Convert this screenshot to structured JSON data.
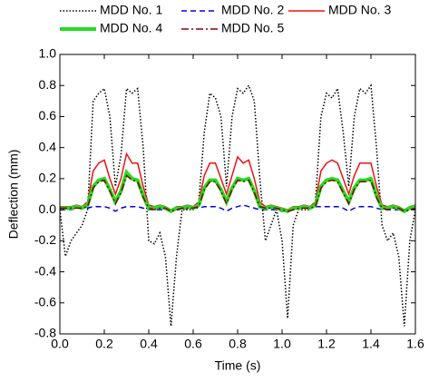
{
  "chart_data": {
    "type": "line",
    "xlabel": "Time (s)",
    "ylabel": "Deflection (mm)",
    "xlim": [
      0,
      1.6
    ],
    "ylim": [
      -0.8,
      1.0
    ],
    "xticks": [
      {
        "value": 0,
        "label": "0.0"
      },
      {
        "value": 0.2,
        "label": "0.2"
      },
      {
        "value": 0.4,
        "label": "0.4"
      },
      {
        "value": 0.6,
        "label": "0.6"
      },
      {
        "value": 0.8,
        "label": "0.8"
      },
      {
        "value": 1.0,
        "label": "1.0"
      },
      {
        "value": 1.2,
        "label": "1.2"
      },
      {
        "value": 1.4,
        "label": "1.4"
      },
      {
        "value": 1.6,
        "label": "1.6"
      }
    ],
    "yticks": [
      {
        "value": -0.8,
        "label": "-0.8"
      },
      {
        "value": -0.6,
        "label": "-0.6"
      },
      {
        "value": -0.4,
        "label": "-0.4"
      },
      {
        "value": -0.2,
        "label": "-0.2"
      },
      {
        "value": 0,
        "label": "0.0"
      },
      {
        "value": 0.2,
        "label": "0.2"
      },
      {
        "value": 0.4,
        "label": "0.4"
      },
      {
        "value": 0.6,
        "label": "0.6"
      },
      {
        "value": 0.8,
        "label": "0.8"
      },
      {
        "value": 1.0,
        "label": "1.0"
      }
    ],
    "x": [
      0,
      0.025,
      0.05,
      0.075,
      0.1,
      0.125,
      0.15,
      0.175,
      0.2,
      0.225,
      0.25,
      0.275,
      0.3,
      0.325,
      0.35,
      0.375,
      0.4,
      0.425,
      0.45,
      0.475,
      0.5,
      0.525,
      0.55,
      0.575,
      0.6,
      0.625,
      0.65,
      0.675,
      0.7,
      0.725,
      0.75,
      0.775,
      0.8,
      0.825,
      0.85,
      0.875,
      0.9,
      0.925,
      0.95,
      0.975,
      1.0,
      1.025,
      1.05,
      1.075,
      1.1,
      1.125,
      1.15,
      1.175,
      1.2,
      1.225,
      1.25,
      1.275,
      1.3,
      1.325,
      1.35,
      1.375,
      1.4,
      1.425,
      1.45,
      1.475,
      1.5,
      1.525,
      1.55,
      1.575,
      1.6
    ],
    "series": [
      {
        "name": "MDD No. 1",
        "color": "#000000",
        "dash": "dotted",
        "width": 1.5,
        "values": [
          0,
          -0.3,
          -0.2,
          -0.15,
          -0.1,
          0,
          0.7,
          0.75,
          0.78,
          0.6,
          0.15,
          0.35,
          0.78,
          0.75,
          0.78,
          0.4,
          -0.2,
          -0.22,
          -0.15,
          -0.3,
          -0.75,
          -0.3,
          0,
          0,
          0,
          0.05,
          0.5,
          0.75,
          0.72,
          0.6,
          0.15,
          0.6,
          0.78,
          0.75,
          0.8,
          0.7,
          0.2,
          -0.2,
          -0.1,
          0,
          -0.2,
          -0.7,
          -0.1,
          0,
          0,
          0,
          0.05,
          0.6,
          0.75,
          0.72,
          0.78,
          0.5,
          0.15,
          0.6,
          0.78,
          0.75,
          0.8,
          0.4,
          -0.1,
          -0.2,
          -0.15,
          -0.3,
          -0.75,
          -0.2,
          0
        ]
      },
      {
        "name": "MDD No. 2",
        "color": "#0000ee",
        "dash": "dashed",
        "width": 1.5,
        "values": [
          0,
          0,
          0,
          0.01,
          0.01,
          0.01,
          0.02,
          0.02,
          0.02,
          0.01,
          -0.01,
          0.01,
          0.02,
          0.02,
          0.02,
          0.01,
          0,
          0,
          0,
          0,
          -0.01,
          0,
          0,
          0.01,
          0.01,
          0.01,
          0.02,
          0.02,
          0.02,
          0.01,
          -0.01,
          0.01,
          0.02,
          0.03,
          0.02,
          0.01,
          0,
          0,
          0,
          0,
          -0.01,
          -0.01,
          0,
          0.01,
          0.01,
          0.01,
          0.02,
          0.02,
          0.02,
          0.02,
          0.02,
          0.01,
          -0.01,
          0.01,
          0.02,
          0.02,
          0.02,
          0.01,
          0,
          0,
          0,
          0,
          -0.01,
          0,
          0
        ]
      },
      {
        "name": "MDD No. 3",
        "color": "#ee1111",
        "dash": "solid",
        "width": 1.5,
        "values": [
          0.02,
          0.02,
          0.02,
          0.03,
          0.02,
          0.05,
          0.25,
          0.3,
          0.32,
          0.2,
          0.1,
          0.2,
          0.36,
          0.3,
          0.3,
          0.15,
          0.03,
          0.02,
          0.03,
          0.02,
          0,
          0.02,
          0.02,
          0.03,
          0.02,
          0.05,
          0.22,
          0.3,
          0.3,
          0.2,
          0.1,
          0.22,
          0.34,
          0.3,
          0.32,
          0.2,
          0.05,
          0.02,
          0.03,
          0.02,
          0.01,
          0,
          0.02,
          0.02,
          0.03,
          0.02,
          0.05,
          0.25,
          0.3,
          0.32,
          0.3,
          0.2,
          0.1,
          0.22,
          0.3,
          0.3,
          0.3,
          0.15,
          0.03,
          0.02,
          0.03,
          0.02,
          0,
          0.02,
          0.03
        ]
      },
      {
        "name": "MDD No. 4",
        "color": "#22dd22",
        "dash": "solid",
        "width": 4,
        "values": [
          0.01,
          0.01,
          0.01,
          0.02,
          0.01,
          0.03,
          0.15,
          0.19,
          0.2,
          0.13,
          0.05,
          0.12,
          0.24,
          0.2,
          0.19,
          0.09,
          0.01,
          0.01,
          0.02,
          0.01,
          -0.01,
          0.01,
          0.01,
          0.02,
          0.01,
          0.03,
          0.14,
          0.19,
          0.19,
          0.13,
          0.05,
          0.14,
          0.2,
          0.19,
          0.2,
          0.12,
          0.02,
          0.01,
          0.02,
          0.01,
          0,
          -0.01,
          0.01,
          0.01,
          0.02,
          0.01,
          0.03,
          0.15,
          0.19,
          0.2,
          0.19,
          0.12,
          0.05,
          0.14,
          0.19,
          0.19,
          0.2,
          0.09,
          0.01,
          0.01,
          0.02,
          0.01,
          -0.01,
          0.01,
          0.02
        ]
      },
      {
        "name": "MDD No. 5",
        "color": "#8b0000",
        "dash": "dashdot",
        "width": 1.5,
        "values": [
          0.01,
          0.01,
          0.01,
          0.01,
          0.01,
          0.02,
          0.14,
          0.18,
          0.19,
          0.12,
          0.04,
          0.11,
          0.22,
          0.19,
          0.18,
          0.08,
          0.01,
          0,
          0.01,
          0.01,
          -0.01,
          0,
          0.01,
          0.01,
          0.01,
          0.02,
          0.13,
          0.18,
          0.18,
          0.12,
          0.04,
          0.13,
          0.19,
          0.18,
          0.19,
          0.11,
          0.02,
          0.01,
          0.01,
          0.01,
          0,
          -0.01,
          0,
          0.01,
          0.01,
          0.01,
          0.02,
          0.14,
          0.18,
          0.19,
          0.18,
          0.11,
          0.04,
          0.13,
          0.18,
          0.18,
          0.19,
          0.08,
          0.01,
          0,
          0.01,
          0.01,
          -0.01,
          0,
          0.01
        ]
      }
    ]
  }
}
